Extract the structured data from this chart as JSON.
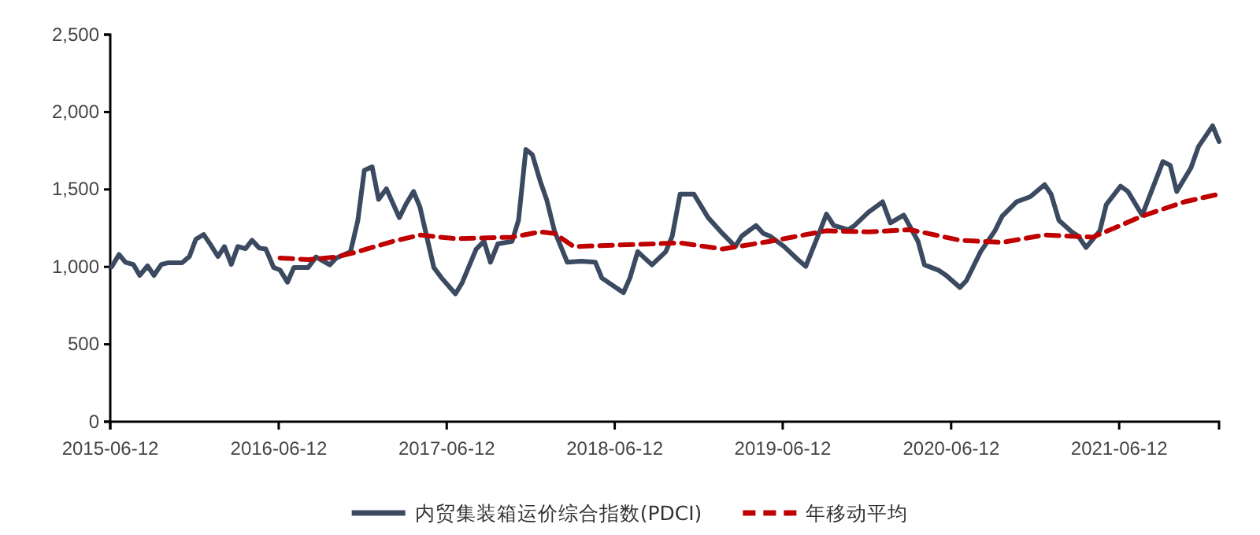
{
  "chart_data": {
    "type": "line",
    "legend": "bottom",
    "grid": false,
    "xlim": [
      "2015-06-12",
      "2022-01-15"
    ],
    "xticks": [
      "2015-06-12",
      "2016-06-12",
      "2017-06-12",
      "2018-06-12",
      "2019-06-12",
      "2020-06-12",
      "2021-06-12"
    ],
    "ylim": [
      0,
      2500
    ],
    "yticks": [
      {
        "value": 0,
        "label": "0"
      },
      {
        "value": 500,
        "label": "500"
      },
      {
        "value": 1000,
        "label": "1,000"
      },
      {
        "value": 1500,
        "label": "1,500"
      },
      {
        "value": 2000,
        "label": "2,000"
      },
      {
        "value": 2500,
        "label": "2,500"
      }
    ],
    "series": [
      {
        "name": "内贸集装箱运价综合指数(PDCI)",
        "color": "#3b4a60",
        "line_style": "solid",
        "x": [
          "2015-06-15",
          "2015-07-01",
          "2015-07-15",
          "2015-08-01",
          "2015-08-15",
          "2015-09-01",
          "2015-09-15",
          "2015-10-01",
          "2015-10-15",
          "2015-11-15",
          "2015-12-01",
          "2015-12-15",
          "2016-01-01",
          "2016-01-15",
          "2016-02-01",
          "2016-02-15",
          "2016-03-01",
          "2016-03-15",
          "2016-04-01",
          "2016-04-15",
          "2016-05-01",
          "2016-05-15",
          "2016-06-01",
          "2016-06-15",
          "2016-07-01",
          "2016-07-15",
          "2016-08-15",
          "2016-09-01",
          "2016-10-01",
          "2016-10-15",
          "2016-11-15",
          "2016-12-01",
          "2016-12-15",
          "2017-01-01",
          "2017-01-15",
          "2017-02-01",
          "2017-03-01",
          "2017-03-15",
          "2017-04-01",
          "2017-04-15",
          "2017-05-15",
          "2017-06-01",
          "2017-07-01",
          "2017-07-15",
          "2017-08-15",
          "2017-09-01",
          "2017-09-15",
          "2017-10-01",
          "2017-11-01",
          "2017-11-15",
          "2017-12-01",
          "2017-12-15",
          "2018-01-01",
          "2018-01-15",
          "2018-02-01",
          "2018-03-01",
          "2018-04-01",
          "2018-05-01",
          "2018-05-15",
          "2018-07-01",
          "2018-07-15",
          "2018-08-01",
          "2018-09-01",
          "2018-10-01",
          "2018-10-15",
          "2018-11-01",
          "2018-12-01",
          "2019-01-01",
          "2019-02-01",
          "2019-03-01",
          "2019-03-15",
          "2019-04-15",
          "2019-05-01",
          "2019-05-15",
          "2019-06-15",
          "2019-07-15",
          "2019-08-01",
          "2019-09-01",
          "2019-09-15",
          "2019-10-01",
          "2019-11-01",
          "2019-11-15",
          "2019-12-15",
          "2020-01-15",
          "2020-02-01",
          "2020-03-01",
          "2020-04-01",
          "2020-04-15",
          "2020-05-15",
          "2020-06-01",
          "2020-07-01",
          "2020-07-15",
          "2020-08-15",
          "2020-09-15",
          "2020-10-01",
          "2020-11-01",
          "2020-12-01",
          "2021-01-01",
          "2021-01-15",
          "2021-02-01",
          "2021-03-01",
          "2021-03-15",
          "2021-04-01",
          "2021-05-01",
          "2021-05-15",
          "2021-06-15",
          "2021-07-01",
          "2021-08-01",
          "2021-09-01",
          "2021-09-15",
          "2021-10-01",
          "2021-10-15",
          "2021-11-15",
          "2021-12-01",
          "2022-01-01",
          "2022-01-15"
        ],
        "values": [
          1000,
          1080,
          1030,
          1016,
          945,
          1006,
          945,
          1016,
          1026,
          1026,
          1067,
          1179,
          1209,
          1148,
          1067,
          1131,
          1016,
          1131,
          1118,
          1172,
          1121,
          1115,
          996,
          979,
          901,
          996,
          996,
          1064,
          1013,
          1057,
          1098,
          1301,
          1623,
          1646,
          1436,
          1504,
          1318,
          1402,
          1487,
          1385,
          996,
          928,
          826,
          894,
          1115,
          1165,
          1030,
          1148,
          1165,
          1301,
          1758,
          1725,
          1555,
          1436,
          1233,
          1030,
          1036,
          1030,
          928,
          833,
          928,
          1098,
          1013,
          1098,
          1199,
          1470,
          1470,
          1318,
          1216,
          1131,
          1199,
          1267,
          1216,
          1199,
          1131,
          1047,
          1003,
          1233,
          1341,
          1267,
          1240,
          1267,
          1352,
          1420,
          1284,
          1334,
          1165,
          1013,
          979,
          945,
          867,
          911,
          1098,
          1233,
          1328,
          1420,
          1453,
          1531,
          1470,
          1301,
          1226,
          1199,
          1125,
          1233,
          1402,
          1521,
          1487,
          1334,
          1572,
          1680,
          1656,
          1487,
          1640,
          1775,
          1911,
          1809
        ]
      },
      {
        "name": "年移动平均",
        "color": "#c00000",
        "line_style": "dashed",
        "x": [
          "2016-06-15",
          "2016-08-15",
          "2016-10-15",
          "2016-12-01",
          "2017-02-15",
          "2017-04-15",
          "2017-07-01",
          "2017-11-01",
          "2018-01-01",
          "2018-02-01",
          "2018-03-15",
          "2018-11-01",
          "2019-02-01",
          "2019-05-15",
          "2019-09-15",
          "2019-12-15",
          "2020-03-15",
          "2020-07-01",
          "2020-10-01",
          "2021-01-01",
          "2021-04-15",
          "2021-06-01",
          "2021-08-01",
          "2021-11-01",
          "2022-01-15"
        ],
        "values": [
          1057,
          1047,
          1064,
          1098,
          1165,
          1206,
          1182,
          1192,
          1226,
          1216,
          1131,
          1155,
          1115,
          1165,
          1233,
          1226,
          1240,
          1172,
          1158,
          1206,
          1192,
          1250,
          1328,
          1420,
          1470
        ]
      }
    ]
  }
}
